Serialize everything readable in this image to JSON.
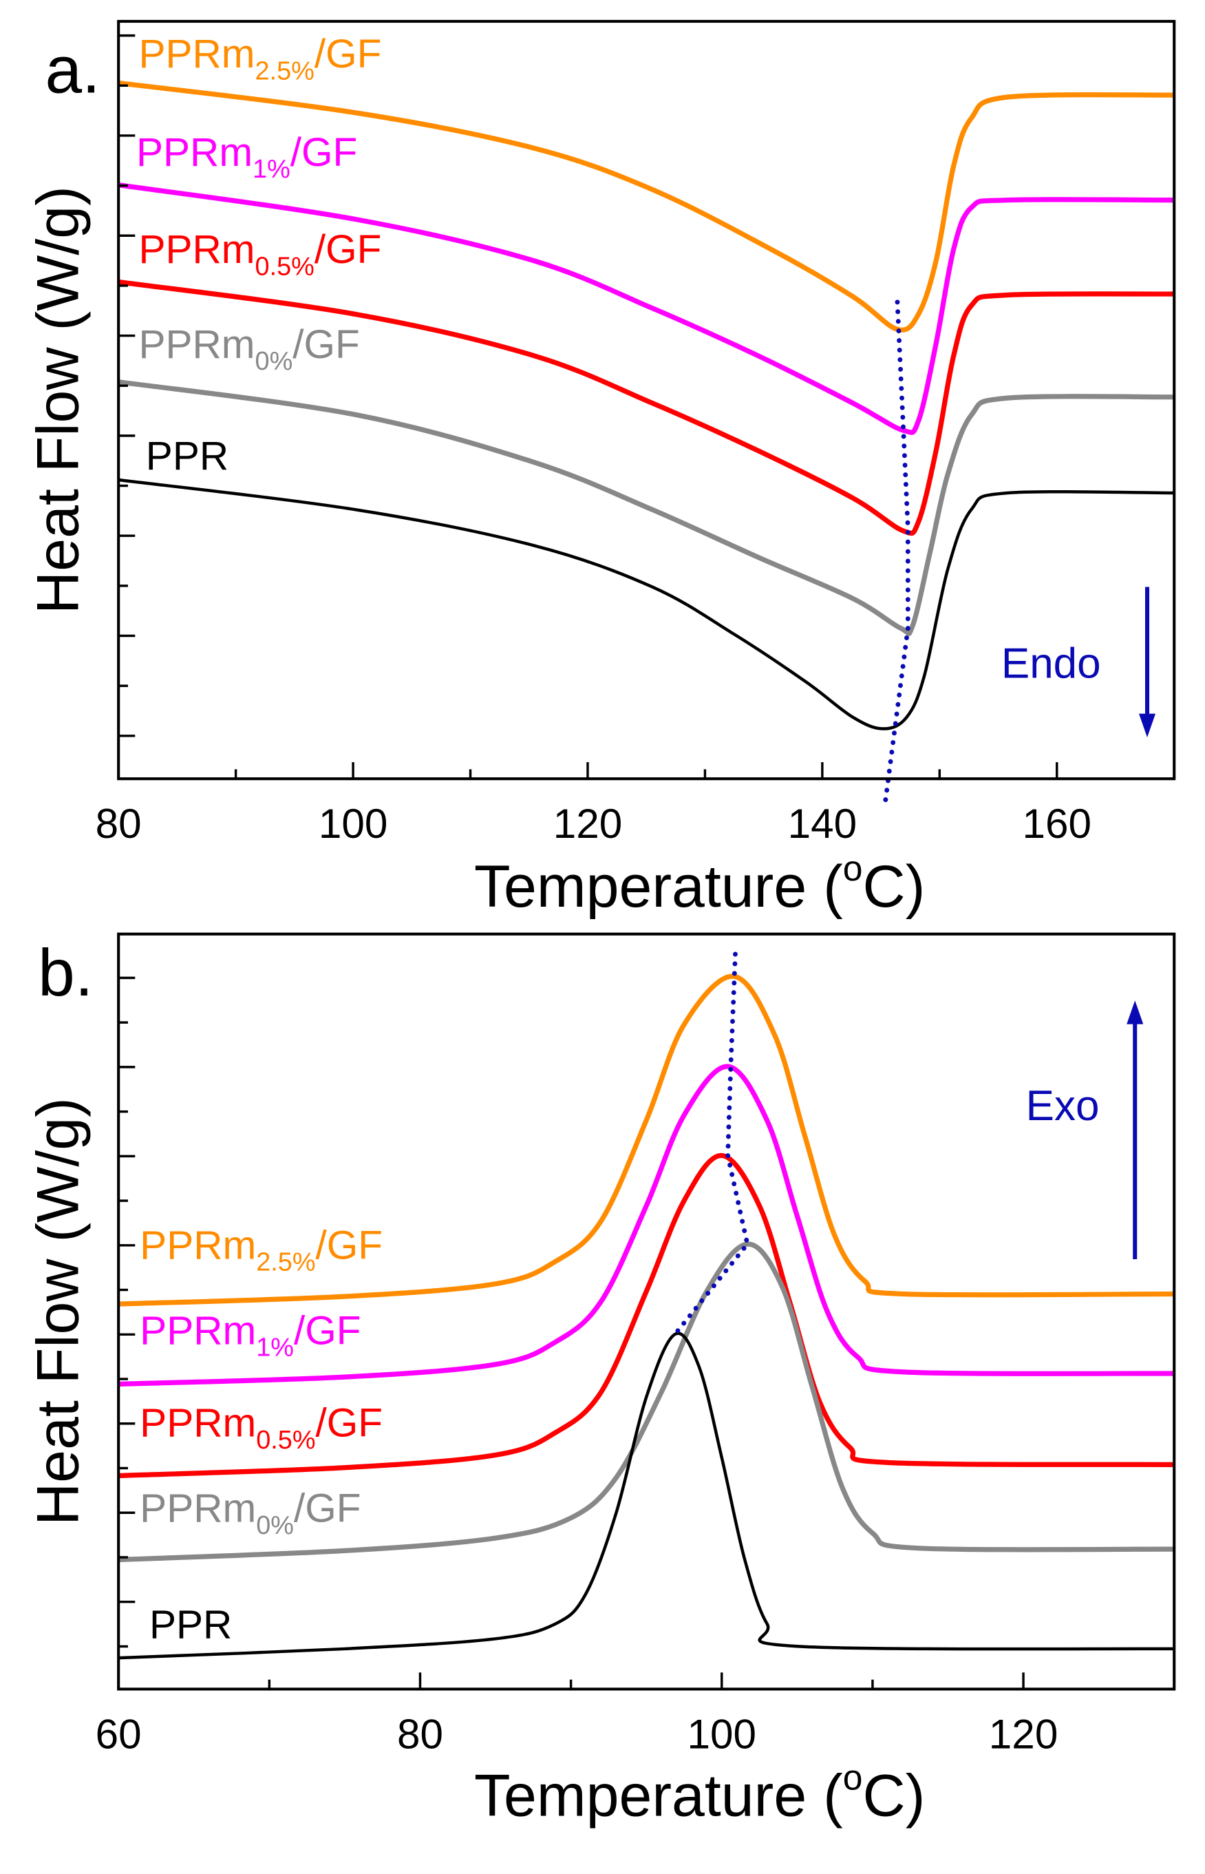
{
  "chart_data": [
    {
      "type": "line",
      "panel_label": "a.",
      "title": "",
      "xlabel": {
        "main": "Temperature (",
        "degree": "o",
        "unit": "C)"
      },
      "ylabel": "Heat Flow (W/g)",
      "xlim": [
        80,
        170
      ],
      "ylim": [
        0,
        15
      ],
      "xticks": [
        80,
        100,
        120,
        140,
        160
      ],
      "xminor": [
        90,
        110,
        130,
        150
      ],
      "grid": false,
      "annotation": {
        "text": "Endo",
        "arrow": "down",
        "color": "#0a0ab4",
        "arrow_x": 167.7,
        "arrow_from": 3.8,
        "arrow_to": 0.82,
        "text_x": 159.5,
        "text_y": 2.0
      },
      "peak_guide": {
        "color": "#0a0ab4",
        "points": [
          [
            146.4,
            9.44
          ],
          [
            146.9,
            6.97
          ],
          [
            147.3,
            4.98
          ],
          [
            147.3,
            2.98
          ],
          [
            145.3,
            -0.59
          ]
        ]
      },
      "series": [
        {
          "name": "PPRm2.5%/GF",
          "label": {
            "base": "PPRm",
            "sub": "2.5%",
            "suffix": "/GF"
          },
          "color": "#ff8c00",
          "points": [
            [
              80,
              13.78
            ],
            [
              100.2,
              13.19
            ],
            [
              115.4,
              12.49
            ],
            [
              125.5,
              11.67
            ],
            [
              135.6,
              10.49
            ],
            [
              142.6,
              9.55
            ],
            [
              146.4,
              8.9
            ],
            [
              148.2,
              9.2
            ],
            [
              149.7,
              10.26
            ],
            [
              151.2,
              12.14
            ],
            [
              152.7,
              13.08
            ],
            [
              155.8,
              13.5
            ],
            [
              170,
              13.54
            ]
          ]
        },
        {
          "name": "PPRm1%/GF",
          "label": {
            "base": "PPRm",
            "sub": "1%",
            "suffix": "/GF"
          },
          "color": "#ff00ff",
          "points": [
            [
              80,
              11.76
            ],
            [
              100.2,
              11.08
            ],
            [
              115.4,
              10.26
            ],
            [
              125.5,
              9.32
            ],
            [
              134.5,
              8.38
            ],
            [
              142.6,
              7.44
            ],
            [
              146.9,
              6.9
            ],
            [
              148.2,
              7.09
            ],
            [
              149.7,
              8.62
            ],
            [
              151.2,
              10.49
            ],
            [
              152.7,
              11.31
            ],
            [
              155.8,
              11.46
            ],
            [
              170,
              11.46
            ]
          ]
        },
        {
          "name": "PPRm0.5%/GF",
          "label": {
            "base": "PPRm",
            "sub": "0.5%",
            "suffix": "/GF"
          },
          "color": "#ff0000",
          "points": [
            [
              80,
              9.84
            ],
            [
              100.2,
              9.2
            ],
            [
              115.4,
              8.38
            ],
            [
              125.5,
              7.44
            ],
            [
              134.5,
              6.5
            ],
            [
              142.6,
              5.56
            ],
            [
              146.9,
              4.91
            ],
            [
              148.2,
              5.09
            ],
            [
              149.7,
              6.5
            ],
            [
              151.2,
              8.38
            ],
            [
              152.7,
              9.37
            ],
            [
              155.8,
              9.58
            ],
            [
              170,
              9.6
            ]
          ]
        },
        {
          "name": "PPRm0%/GF",
          "label": {
            "base": "PPRm",
            "sub": "0%",
            "suffix": "/GF"
          },
          "color": "#888888",
          "points": [
            [
              80,
              7.86
            ],
            [
              100.2,
              7.21
            ],
            [
              115.4,
              6.27
            ],
            [
              125.5,
              5.33
            ],
            [
              134.5,
              4.39
            ],
            [
              142.6,
              3.57
            ],
            [
              146.7,
              2.98
            ],
            [
              147.7,
              3.03
            ],
            [
              149.2,
              4.5
            ],
            [
              150.7,
              6.03
            ],
            [
              152.7,
              7.2
            ],
            [
              155.8,
              7.54
            ],
            [
              170,
              7.56
            ]
          ]
        },
        {
          "name": "PPR",
          "label": {
            "base": "PPR"
          },
          "color": "#000000",
          "points": [
            [
              80,
              5.92
            ],
            [
              100.2,
              5.33
            ],
            [
              115.4,
              4.62
            ],
            [
              125.5,
              3.8
            ],
            [
              132.5,
              2.86
            ],
            [
              138.6,
              1.92
            ],
            [
              142.6,
              1.22
            ],
            [
              145.2,
              0.99
            ],
            [
              147.2,
              1.22
            ],
            [
              148.7,
              2.04
            ],
            [
              150.7,
              4.15
            ],
            [
              152.7,
              5.33
            ],
            [
              155.8,
              5.66
            ],
            [
              170,
              5.66
            ]
          ]
        }
      ]
    },
    {
      "type": "line",
      "panel_label": "b.",
      "title": "",
      "xlabel": {
        "main": "Temperature (",
        "degree": "o",
        "unit": "C)"
      },
      "ylabel": "Heat Flow (W/g)",
      "xlim": [
        60,
        130
      ],
      "ylim": [
        0,
        15
      ],
      "xticks": [
        60,
        80,
        100,
        120
      ],
      "xminor": [
        70,
        90,
        110
      ],
      "grid": false,
      "annotation": {
        "text": "Exo",
        "arrow": "up",
        "color": "#0a0ab4",
        "arrow_x": 127.4,
        "arrow_from": 8.54,
        "arrow_to": 13.68,
        "text_x": 122.6,
        "text_y": 11.3
      },
      "peak_guide": {
        "color": "#0a0ab4",
        "points": [
          [
            100.9,
            14.6
          ],
          [
            100.6,
            12.4
          ],
          [
            100.4,
            10.6
          ],
          [
            101.7,
            8.84
          ],
          [
            96.9,
            7.05
          ]
        ]
      },
      "series": [
        {
          "name": "PPRm2.5%/GF",
          "label": {
            "base": "PPRm",
            "sub": "2.5%",
            "suffix": "/GF"
          },
          "color": "#ff8c00",
          "points": [
            [
              60,
              7.65
            ],
            [
              75,
              7.8
            ],
            [
              85,
              8.05
            ],
            [
              89,
              8.5
            ],
            [
              92,
              9.3
            ],
            [
              95,
              11.3
            ],
            [
              97.5,
              13.2
            ],
            [
              100.8,
              14.16
            ],
            [
              103.5,
              13.0
            ],
            [
              105.5,
              11.0
            ],
            [
              107.5,
              9.0
            ],
            [
              109.5,
              8.1
            ],
            [
              112,
              7.85
            ],
            [
              130,
              7.85
            ]
          ]
        },
        {
          "name": "PPRm1%/GF",
          "label": {
            "base": "PPRm",
            "sub": "1%",
            "suffix": "/GF"
          },
          "color": "#ff00ff",
          "points": [
            [
              60,
              6.06
            ],
            [
              75,
              6.2
            ],
            [
              85,
              6.45
            ],
            [
              89,
              6.9
            ],
            [
              92,
              7.7
            ],
            [
              95,
              9.6
            ],
            [
              97.5,
              11.4
            ],
            [
              100.4,
              12.37
            ],
            [
              103,
              11.3
            ],
            [
              105,
              9.4
            ],
            [
              107,
              7.5
            ],
            [
              109,
              6.6
            ],
            [
              112,
              6.3
            ],
            [
              130,
              6.27
            ]
          ]
        },
        {
          "name": "PPRm0.5%/GF",
          "label": {
            "base": "PPRm",
            "sub": "0.5%",
            "suffix": "/GF"
          },
          "color": "#ff0000",
          "points": [
            [
              60,
              4.24
            ],
            [
              75,
              4.4
            ],
            [
              85,
              4.65
            ],
            [
              89,
              5.1
            ],
            [
              92,
              5.9
            ],
            [
              95,
              7.9
            ],
            [
              97.5,
              9.7
            ],
            [
              100,
              10.6
            ],
            [
              102.5,
              9.6
            ],
            [
              104.5,
              7.7
            ],
            [
              106.5,
              5.7
            ],
            [
              108.5,
              4.8
            ],
            [
              111,
              4.5
            ],
            [
              130,
              4.46
            ]
          ]
        },
        {
          "name": "PPRm0%/GF",
          "label": {
            "base": "PPRm",
            "sub": "0%",
            "suffix": "/GF"
          },
          "color": "#888888",
          "points": [
            [
              60,
              2.57
            ],
            [
              75,
              2.75
            ],
            [
              85,
              3.0
            ],
            [
              90,
              3.4
            ],
            [
              93,
              4.2
            ],
            [
              96,
              5.9
            ],
            [
              99,
              7.9
            ],
            [
              101.7,
              8.84
            ],
            [
              104,
              8.0
            ],
            [
              106,
              6.0
            ],
            [
              108,
              4.0
            ],
            [
              110,
              3.1
            ],
            [
              113,
              2.8
            ],
            [
              130,
              2.78
            ]
          ]
        },
        {
          "name": "PPR",
          "label": {
            "base": "PPR"
          },
          "color": "#000000",
          "points": [
            [
              60,
              0.62
            ],
            [
              75,
              0.8
            ],
            [
              85,
              1.0
            ],
            [
              89,
              1.3
            ],
            [
              91,
              1.9
            ],
            [
              93,
              3.5
            ],
            [
              95,
              5.8
            ],
            [
              96.9,
              7.05
            ],
            [
              98.5,
              6.4
            ],
            [
              100,
              4.6
            ],
            [
              101.5,
              2.6
            ],
            [
              103,
              1.3
            ],
            [
              105,
              0.85
            ],
            [
              130,
              0.8
            ]
          ]
        }
      ]
    }
  ]
}
